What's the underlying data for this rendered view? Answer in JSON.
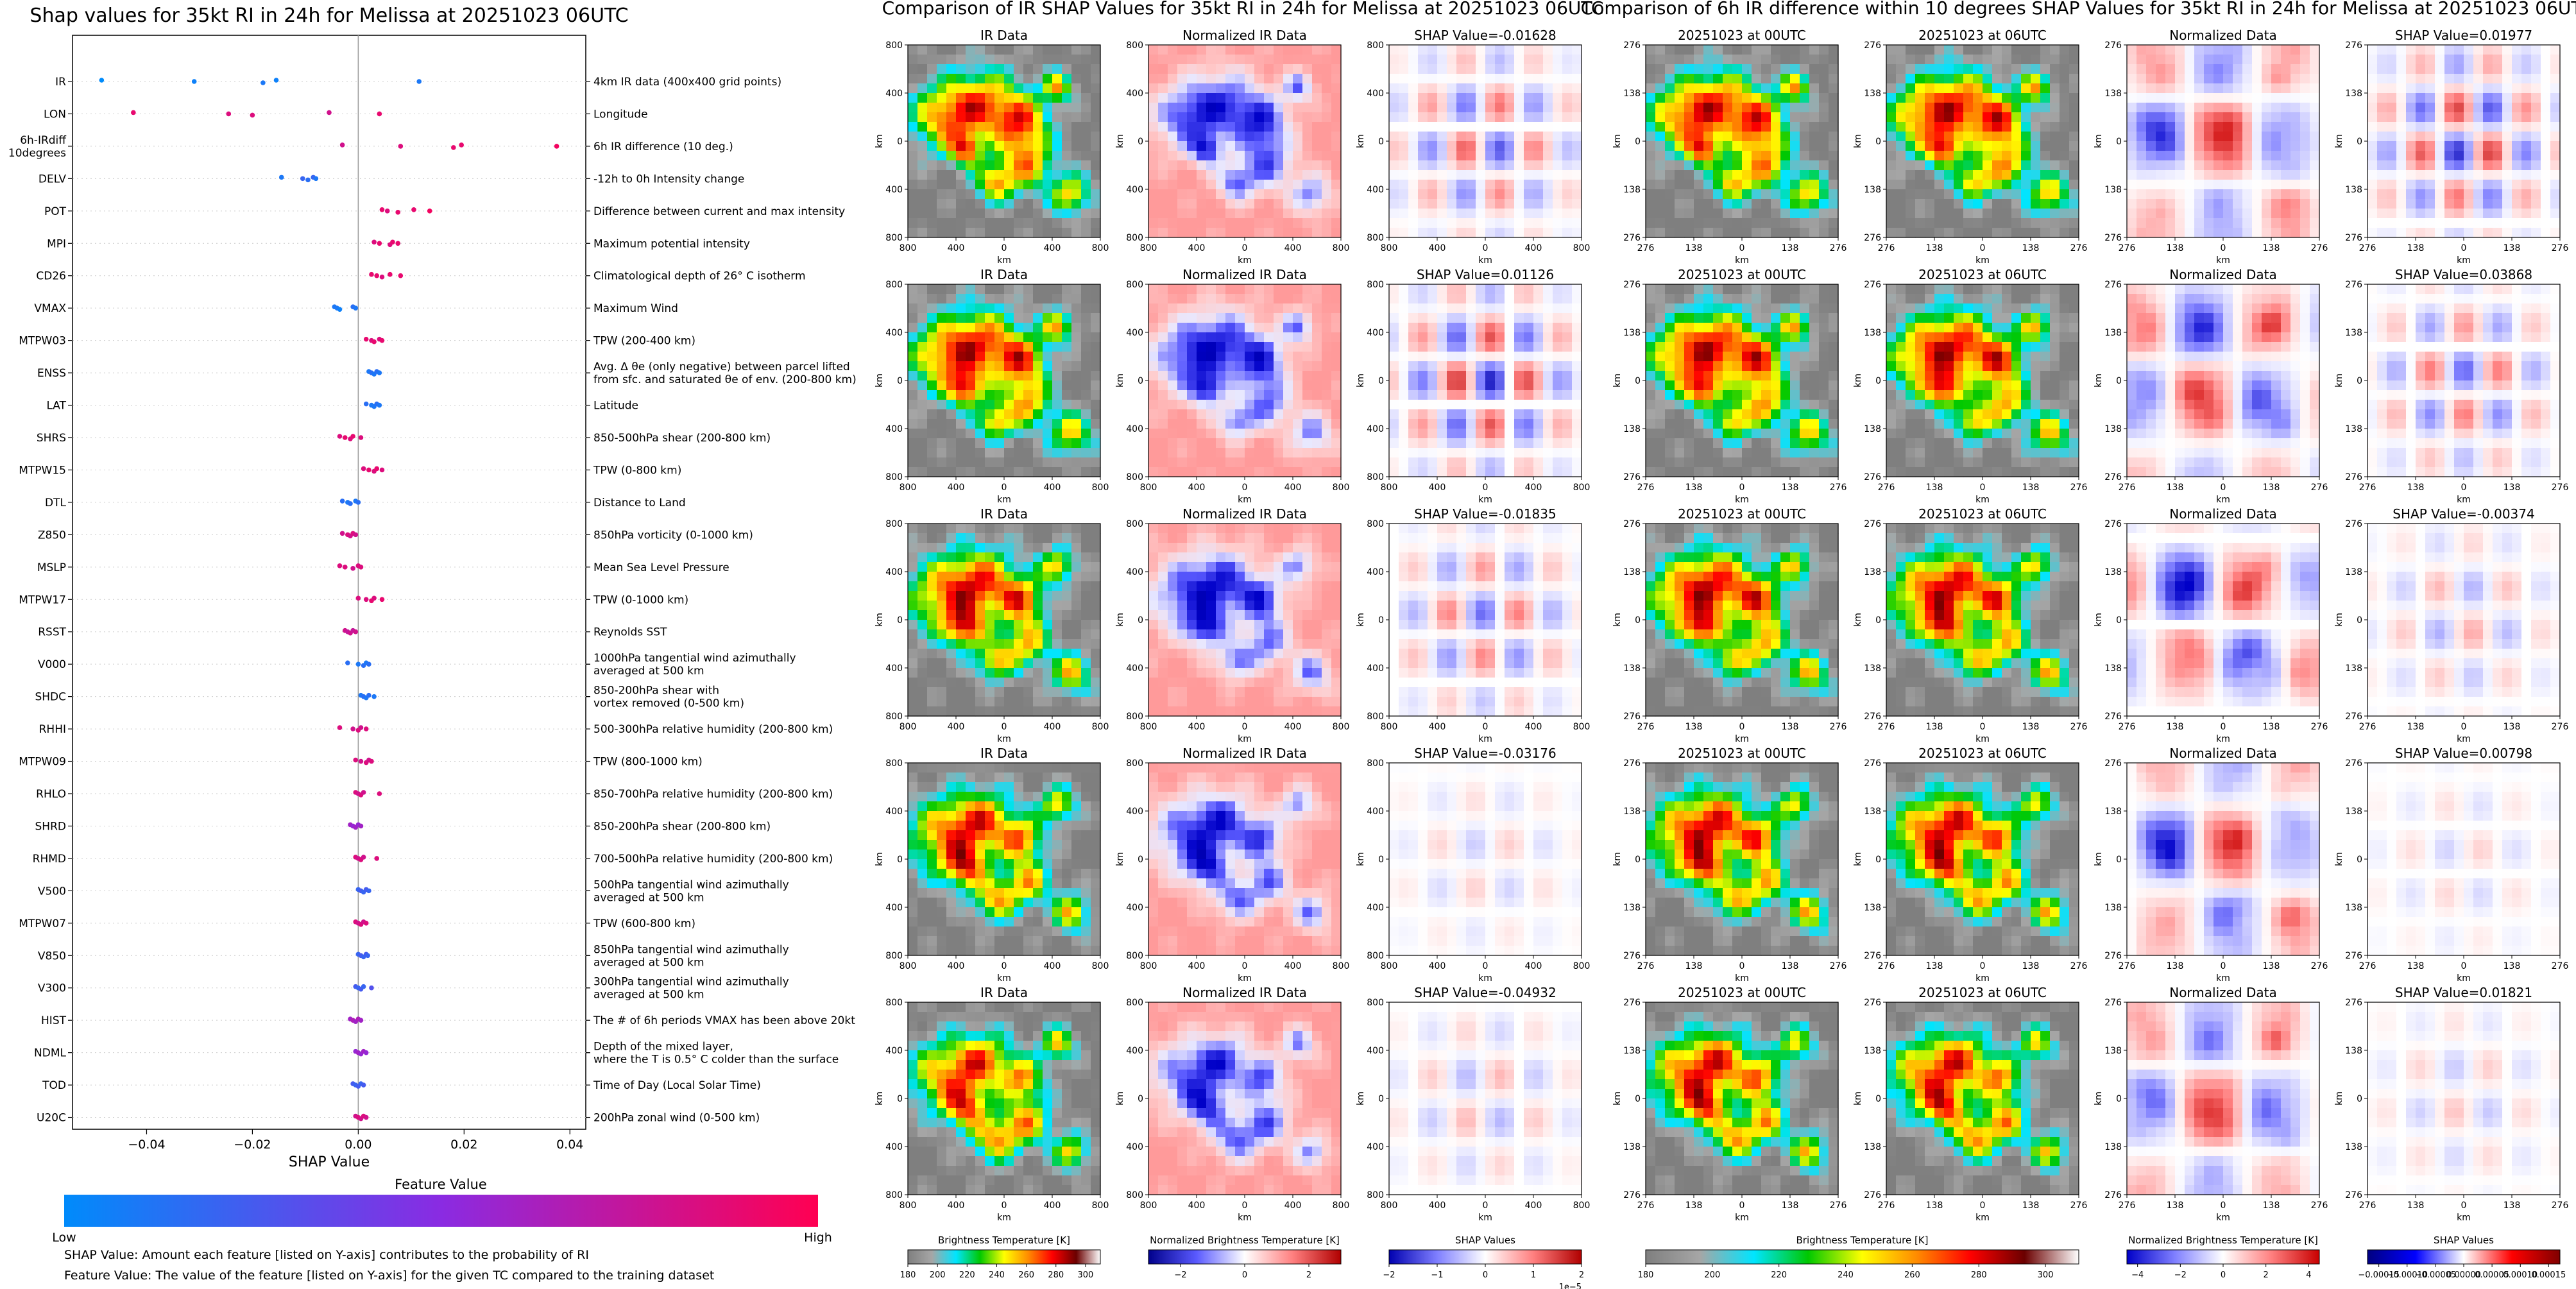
{
  "chart_data": [
    {
      "type": "scatter",
      "title": "Shap values for 35kt RI in 24h for Melissa at 20251023 06UTC",
      "xlabel": "SHAP Value",
      "ylabel": "",
      "xlim": [
        -0.054,
        0.043
      ],
      "xticks": [
        "-0.04",
        "-0.02",
        "0.00",
        "0.02",
        "0.04"
      ],
      "xtick_values": [
        -0.04,
        -0.02,
        0.0,
        0.02,
        0.04
      ],
      "grid": false,
      "colorbar": {
        "title": "Feature Value",
        "low_label": "Low",
        "high_label": "High",
        "colors": [
          "#008bfb",
          "#8a2be2",
          "#ff0052"
        ]
      },
      "features": [
        {
          "name": "IR",
          "description": "4km IR data (400x400 grid points)",
          "points": [
            [
              -0.0485,
              0.0
            ],
            [
              -0.031,
              0.05
            ],
            [
              -0.018,
              0.1
            ],
            [
              -0.0155,
              0.05
            ],
            [
              0.0115,
              0.1
            ]
          ]
        },
        {
          "name": "LON",
          "description": "Longitude",
          "points": [
            [
              -0.0425,
              0.9
            ],
            [
              -0.0245,
              0.85
            ],
            [
              -0.02,
              0.85
            ],
            [
              -0.0055,
              0.8
            ],
            [
              0.004,
              0.9
            ]
          ]
        },
        {
          "name": "6h-IRdiff\n10degrees",
          "description": "6h IR difference (10 deg.)",
          "points": [
            [
              -0.003,
              0.8
            ],
            [
              0.008,
              0.85
            ],
            [
              0.018,
              0.9
            ],
            [
              0.0195,
              0.9
            ],
            [
              0.0375,
              0.95
            ]
          ]
        },
        {
          "name": "DELV",
          "description": "-12h to 0h Intensity change",
          "points": [
            [
              -0.0145,
              0.1
            ],
            [
              -0.0105,
              0.2
            ],
            [
              -0.0095,
              0.15
            ],
            [
              -0.0085,
              0.2
            ],
            [
              -0.008,
              0.1
            ]
          ]
        },
        {
          "name": "POT",
          "description": "Difference between current and max intensity",
          "points": [
            [
              0.0045,
              0.9
            ],
            [
              0.0055,
              0.85
            ],
            [
              0.0075,
              0.9
            ],
            [
              0.0105,
              0.9
            ],
            [
              0.0135,
              0.95
            ]
          ]
        },
        {
          "name": "MPI",
          "description": "Maximum potential intensity",
          "points": [
            [
              0.003,
              0.85
            ],
            [
              0.004,
              0.9
            ],
            [
              0.006,
              0.85
            ],
            [
              0.0065,
              0.9
            ],
            [
              0.0075,
              0.9
            ]
          ]
        },
        {
          "name": "CD26",
          "description": "Climatological depth of 26° C isotherm",
          "points": [
            [
              0.0025,
              0.9
            ],
            [
              0.0035,
              0.9
            ],
            [
              0.0045,
              0.85
            ],
            [
              0.006,
              0.9
            ],
            [
              0.008,
              0.9
            ]
          ]
        },
        {
          "name": "VMAX",
          "description": "Maximum Wind",
          "points": [
            [
              -0.0045,
              0.1
            ],
            [
              -0.004,
              0.1
            ],
            [
              -0.0035,
              0.05
            ],
            [
              -0.001,
              0.15
            ],
            [
              -0.0005,
              0.1
            ]
          ]
        },
        {
          "name": "MTPW03",
          "description": "TPW (200-400 km)",
          "points": [
            [
              0.0015,
              0.9
            ],
            [
              0.0025,
              0.85
            ],
            [
              0.003,
              0.9
            ],
            [
              0.004,
              0.85
            ],
            [
              0.0045,
              0.9
            ]
          ]
        },
        {
          "name": "ENSS",
          "description": "Avg. Δ θe (only negative) between parcel lifted\nfrom sfc. and saturated θe of env. (200-800 km)",
          "points": [
            [
              0.002,
              0.1
            ],
            [
              0.0025,
              0.15
            ],
            [
              0.003,
              0.1
            ],
            [
              0.0035,
              0.15
            ],
            [
              0.004,
              0.1
            ]
          ]
        },
        {
          "name": "LAT",
          "description": "Latitude",
          "points": [
            [
              0.0015,
              0.15
            ],
            [
              0.0025,
              0.1
            ],
            [
              0.003,
              0.1
            ],
            [
              0.0035,
              0.15
            ],
            [
              0.004,
              0.1
            ]
          ]
        },
        {
          "name": "SHRS",
          "description": "850-500hPa shear (200-800 km)",
          "points": [
            [
              -0.0035,
              0.85
            ],
            [
              -0.0025,
              0.9
            ],
            [
              -0.0015,
              0.85
            ],
            [
              -0.001,
              0.9
            ],
            [
              0.0005,
              0.85
            ]
          ]
        },
        {
          "name": "MTPW15",
          "description": "TPW (0-800 km)",
          "points": [
            [
              0.001,
              0.85
            ],
            [
              0.002,
              0.9
            ],
            [
              0.003,
              0.85
            ],
            [
              0.0035,
              0.9
            ],
            [
              0.0045,
              0.85
            ]
          ]
        },
        {
          "name": "DTL",
          "description": "Distance to Land",
          "points": [
            [
              -0.003,
              0.15
            ],
            [
              -0.002,
              0.1
            ],
            [
              -0.0015,
              0.15
            ],
            [
              -0.0005,
              0.1
            ],
            [
              0.0,
              0.15
            ]
          ]
        },
        {
          "name": "Z850",
          "description": "850hPa vorticity (0-1000 km)",
          "points": [
            [
              -0.003,
              0.8
            ],
            [
              -0.002,
              0.85
            ],
            [
              -0.0015,
              0.8
            ],
            [
              -0.001,
              0.85
            ],
            [
              -0.0005,
              0.8
            ]
          ]
        },
        {
          "name": "MSLP",
          "description": "Mean Sea Level Pressure",
          "points": [
            [
              -0.0035,
              0.85
            ],
            [
              -0.0025,
              0.85
            ],
            [
              -0.001,
              0.8
            ],
            [
              0.0,
              0.85
            ],
            [
              0.0005,
              0.85
            ]
          ]
        },
        {
          "name": "MTPW17",
          "description": "TPW (0-1000 km)",
          "points": [
            [
              0.0,
              0.85
            ],
            [
              0.0015,
              0.85
            ],
            [
              0.0025,
              0.9
            ],
            [
              0.003,
              0.85
            ],
            [
              0.0045,
              0.9
            ]
          ]
        },
        {
          "name": "RSST",
          "description": "Reynolds SST",
          "points": [
            [
              -0.0025,
              0.8
            ],
            [
              -0.002,
              0.75
            ],
            [
              -0.0015,
              0.8
            ],
            [
              -0.001,
              0.75
            ],
            [
              -0.0005,
              0.8
            ]
          ]
        },
        {
          "name": "V000",
          "description": "1000hPa tangential wind azimuthally\naveraged at 500 km",
          "points": [
            [
              -0.002,
              0.15
            ],
            [
              0.0,
              0.1
            ],
            [
              0.001,
              0.15
            ],
            [
              0.0015,
              0.1
            ],
            [
              0.002,
              0.15
            ]
          ]
        },
        {
          "name": "SHDC",
          "description": "850-200hPa shear with\nvortex removed (0-500 km)",
          "points": [
            [
              0.0005,
              0.1
            ],
            [
              0.001,
              0.15
            ],
            [
              0.0015,
              0.1
            ],
            [
              0.002,
              0.15
            ],
            [
              0.003,
              0.1
            ]
          ]
        },
        {
          "name": "RHHI",
          "description": "500-300hPa relative humidity (200-800 km)",
          "points": [
            [
              -0.0035,
              0.85
            ],
            [
              -0.001,
              0.8
            ],
            [
              0.0,
              0.85
            ],
            [
              0.0005,
              0.8
            ],
            [
              0.0015,
              0.85
            ]
          ]
        },
        {
          "name": "MTPW09",
          "description": "TPW (800-1000 km)",
          "points": [
            [
              -0.0005,
              0.85
            ],
            [
              0.0005,
              0.8
            ],
            [
              0.0015,
              0.85
            ],
            [
              0.002,
              0.8
            ],
            [
              0.0025,
              0.85
            ]
          ]
        },
        {
          "name": "RHLO",
          "description": "850-700hPa relative humidity (200-800 km)",
          "points": [
            [
              -0.0005,
              0.85
            ],
            [
              0.0,
              0.8
            ],
            [
              0.0005,
              0.85
            ],
            [
              0.001,
              0.8
            ],
            [
              0.004,
              0.85
            ]
          ]
        },
        {
          "name": "SHRD",
          "description": "850-200hPa shear (200-800 km)",
          "points": [
            [
              -0.0015,
              0.6
            ],
            [
              -0.001,
              0.55
            ],
            [
              -0.0005,
              0.6
            ],
            [
              0.0,
              0.55
            ],
            [
              0.0005,
              0.6
            ]
          ]
        },
        {
          "name": "RHMD",
          "description": "700-500hPa relative humidity (200-800 km)",
          "points": [
            [
              -0.0005,
              0.85
            ],
            [
              0.0,
              0.8
            ],
            [
              0.0005,
              0.85
            ],
            [
              0.001,
              0.8
            ],
            [
              0.0035,
              0.85
            ]
          ]
        },
        {
          "name": "V500",
          "description": "500hPa tangential wind azimuthally\naveraged at 500 km",
          "points": [
            [
              0.0,
              0.2
            ],
            [
              0.0005,
              0.25
            ],
            [
              0.001,
              0.2
            ],
            [
              0.0015,
              0.25
            ],
            [
              0.002,
              0.2
            ]
          ]
        },
        {
          "name": "MTPW07",
          "description": "TPW (600-800 km)",
          "points": [
            [
              -0.0005,
              0.85
            ],
            [
              0.0,
              0.8
            ],
            [
              0.0005,
              0.85
            ],
            [
              0.001,
              0.8
            ],
            [
              0.0015,
              0.85
            ]
          ]
        },
        {
          "name": "V850",
          "description": "850hPa tangential wind azimuthally\naveraged at 500 km",
          "points": [
            [
              0.0,
              0.2
            ],
            [
              0.0005,
              0.25
            ],
            [
              0.001,
              0.2
            ],
            [
              0.0015,
              0.25
            ],
            [
              0.0018,
              0.2
            ]
          ]
        },
        {
          "name": "V300",
          "description": "300hPa tangential wind azimuthally\naveraged at 500 km",
          "points": [
            [
              -0.0005,
              0.25
            ],
            [
              0.0,
              0.2
            ],
            [
              0.0005,
              0.25
            ],
            [
              0.001,
              0.2
            ],
            [
              0.0025,
              0.3
            ]
          ]
        },
        {
          "name": "HIST",
          "description": "The # of 6h periods VMAX has been above 20kt",
          "points": [
            [
              -0.0015,
              0.6
            ],
            [
              -0.001,
              0.65
            ],
            [
              -0.0005,
              0.6
            ],
            [
              0.0,
              0.65
            ],
            [
              0.0005,
              0.6
            ]
          ]
        },
        {
          "name": "NDML",
          "description": "Depth of the mixed layer,\nwhere the T is 0.5° C colder than the surface",
          "points": [
            [
              -0.0005,
              0.55
            ],
            [
              0.0,
              0.6
            ],
            [
              0.0005,
              0.55
            ],
            [
              0.001,
              0.6
            ],
            [
              0.0015,
              0.55
            ]
          ]
        },
        {
          "name": "TOD",
          "description": "Time of Day (Local Solar Time)",
          "points": [
            [
              -0.001,
              0.25
            ],
            [
              -0.0005,
              0.2
            ],
            [
              0.0,
              0.25
            ],
            [
              0.0005,
              0.2
            ],
            [
              0.001,
              0.25
            ]
          ]
        },
        {
          "name": "U20C",
          "description": "200hPa zonal wind (0-500 km)",
          "points": [
            [
              -0.0005,
              0.8
            ],
            [
              0.0,
              0.85
            ],
            [
              0.0005,
              0.8
            ],
            [
              0.001,
              0.85
            ],
            [
              0.0015,
              0.8
            ]
          ]
        }
      ]
    },
    {
      "type": "heatmap",
      "title": "Comparison of IR SHAP Values for 35kt RI in 24h for Melissa at 20251023 06UTC",
      "column_titles": [
        "IR Data",
        "Normalized IR Data"
      ],
      "shap_titles": [
        "SHAP Value=-0.01628",
        "SHAP Value=0.01126",
        "SHAP Value=-0.01835",
        "SHAP Value=-0.03176",
        "SHAP Value=-0.04932"
      ],
      "xlabel": "km",
      "ylabel": "km",
      "ticks": [
        "800",
        "400",
        "0",
        "400",
        "800"
      ],
      "colorbars": [
        {
          "label": "Brightness Temperature [K]",
          "ticks": [
            "180",
            "200",
            "220",
            "240",
            "260",
            "280",
            "300"
          ],
          "range": [
            180,
            310
          ]
        },
        {
          "label": "Normalized Brightness Temperature [K]",
          "ticks": [
            "−2",
            "0",
            "2"
          ],
          "range": [
            -3,
            3
          ]
        },
        {
          "label": "SHAP Values",
          "ticks": [
            "−2",
            "−1",
            "0",
            "1",
            "2"
          ],
          "range": [
            -2,
            2
          ],
          "scale_note": "1e−5"
        }
      ]
    },
    {
      "type": "heatmap",
      "title": "Comparison of 6h IR difference within 10 degrees SHAP Values for 35kt RI in 24h for Melissa at 20251023 06UTC",
      "column_titles": [
        "20251023 at 00UTC",
        "20251023 at 06UTC",
        "Normalized Data"
      ],
      "shap_titles": [
        "SHAP Value=0.01977",
        "SHAP Value=0.03868",
        "SHAP Value=-0.00374",
        "SHAP Value=0.00798",
        "SHAP Value=0.01821"
      ],
      "xlabel": "km",
      "ylabel": "km",
      "ticks": [
        "276",
        "138",
        "0",
        "138",
        "276"
      ],
      "colorbars": [
        {
          "label": "Brightness Temperature [K]",
          "ticks": [
            "180",
            "200",
            "220",
            "240",
            "260",
            "280",
            "300"
          ],
          "range": [
            180,
            310
          ]
        },
        {
          "label": "Normalized Brightness Temperature [K]",
          "ticks": [
            "−4",
            "−2",
            "0",
            "2",
            "4"
          ],
          "range": [
            -4.5,
            4.5
          ]
        },
        {
          "label": "SHAP Values",
          "ticks": [
            "−0.00015",
            "−0.00010",
            "−0.00005",
            "0.00000",
            "0.00005",
            "0.00010",
            "0.00015"
          ],
          "range": [
            -0.00017,
            0.00017
          ]
        }
      ]
    }
  ],
  "footnotes": [
    "SHAP Value: Amount each feature [listed on Y-axis] contributes to the probability of RI",
    "Feature Value: The value of the feature [listed on Y-axis] for the given TC compared to the training dataset"
  ]
}
